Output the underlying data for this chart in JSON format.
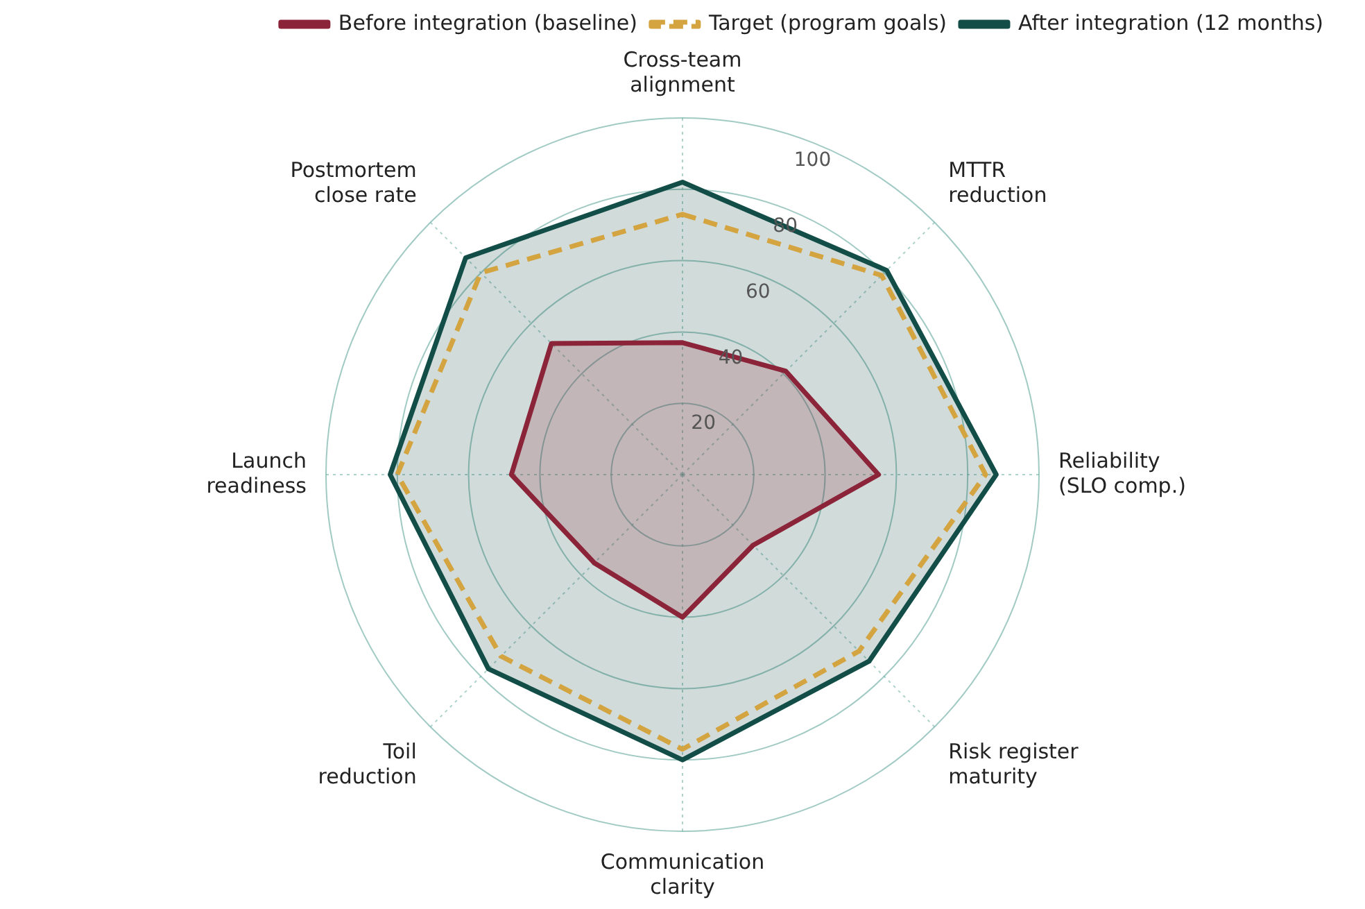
{
  "chart_data": {
    "type": "radar",
    "categories": [
      "Cross-team alignment",
      "MTTR reduction",
      "Reliability (SLO comp.)",
      "Risk register maturity",
      "Communication clarity",
      "Toil reduction",
      "Launch readiness",
      "Postmortem close rate"
    ],
    "series": [
      {
        "name": "Before integration (baseline)",
        "color": "#8b2339",
        "line_style": "solid",
        "values": [
          37,
          41,
          55,
          28,
          40,
          35,
          48,
          52
        ]
      },
      {
        "name": "Target (program goals)",
        "color": "#d4a440",
        "line_style": "dashed",
        "values": [
          73,
          79,
          85,
          70,
          77,
          72,
          80,
          80
        ]
      },
      {
        "name": "After integration (12 months)",
        "color": "#124d48",
        "line_style": "solid",
        "values": [
          82,
          81,
          88,
          74,
          80,
          77,
          82,
          86
        ]
      }
    ],
    "ylim": [
      0,
      100
    ],
    "yticks": [
      20,
      40,
      60,
      80,
      100
    ],
    "grid": true,
    "legend": "top right",
    "marker": "none"
  }
}
